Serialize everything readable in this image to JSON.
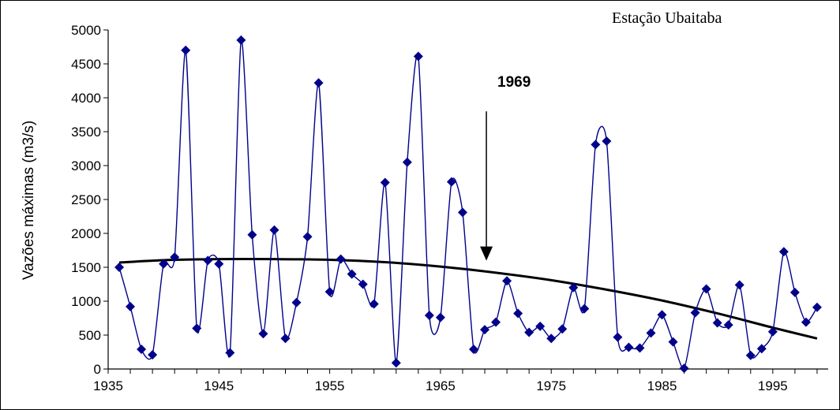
{
  "chart_data": {
    "type": "line",
    "title": "Estação Ubaitaba",
    "xlabel": "",
    "ylabel": "Vazões máximas (m3/s)",
    "xlim": [
      1935,
      2000
    ],
    "ylim": [
      0,
      5000
    ],
    "x_ticks": [
      1935,
      1945,
      1955,
      1965,
      1975,
      1985,
      1995
    ],
    "y_ticks": [
      0,
      500,
      1000,
      1500,
      2000,
      2500,
      3000,
      3500,
      4000,
      4500,
      5000
    ],
    "grid": false,
    "legend": "none",
    "series": [
      {
        "color": "#00008B",
        "marker": "diamond",
        "x": [
          1936,
          1937,
          1938,
          1939,
          1940,
          1941,
          1942,
          1943,
          1944,
          1945,
          1946,
          1947,
          1948,
          1949,
          1950,
          1951,
          1952,
          1953,
          1954,
          1955,
          1956,
          1957,
          1958,
          1959,
          1960,
          1961,
          1962,
          1963,
          1964,
          1965,
          1966,
          1967,
          1968,
          1969,
          1970,
          1971,
          1972,
          1973,
          1974,
          1975,
          1976,
          1977,
          1978,
          1979,
          1980,
          1981,
          1982,
          1983,
          1984,
          1985,
          1986,
          1987,
          1988,
          1989,
          1990,
          1991,
          1992,
          1993,
          1994,
          1995,
          1996,
          1997,
          1998,
          1999
        ],
        "values": [
          1500,
          920,
          290,
          210,
          1550,
          1650,
          4700,
          600,
          1600,
          1550,
          240,
          4850,
          1980,
          520,
          2050,
          450,
          980,
          1950,
          4220,
          1140,
          1620,
          1400,
          1250,
          960,
          2750,
          90,
          3050,
          4610,
          790,
          760,
          2760,
          2310,
          290,
          580,
          690,
          1300,
          820,
          540,
          630,
          450,
          590,
          1200,
          890,
          3310,
          3360,
          470,
          320,
          310,
          530,
          800,
          400,
          10,
          830,
          1180,
          680,
          650,
          1240,
          200,
          300,
          550,
          1730,
          1130,
          690,
          910
        ]
      },
      {
        "color": "#000000",
        "type": "trend",
        "x": [
          1936,
          1940,
          1945,
          1950,
          1955,
          1960,
          1965,
          1970,
          1975,
          1980,
          1985,
          1990,
          1995,
          1999
        ],
        "values": [
          1570,
          1605,
          1620,
          1620,
          1610,
          1575,
          1510,
          1420,
          1310,
          1170,
          1010,
          820,
          610,
          450
        ]
      }
    ],
    "annotations": [
      {
        "text": "1969",
        "x": 1970,
        "arrow_from_y": 3800,
        "arrow_to_y": 1620
      }
    ]
  }
}
